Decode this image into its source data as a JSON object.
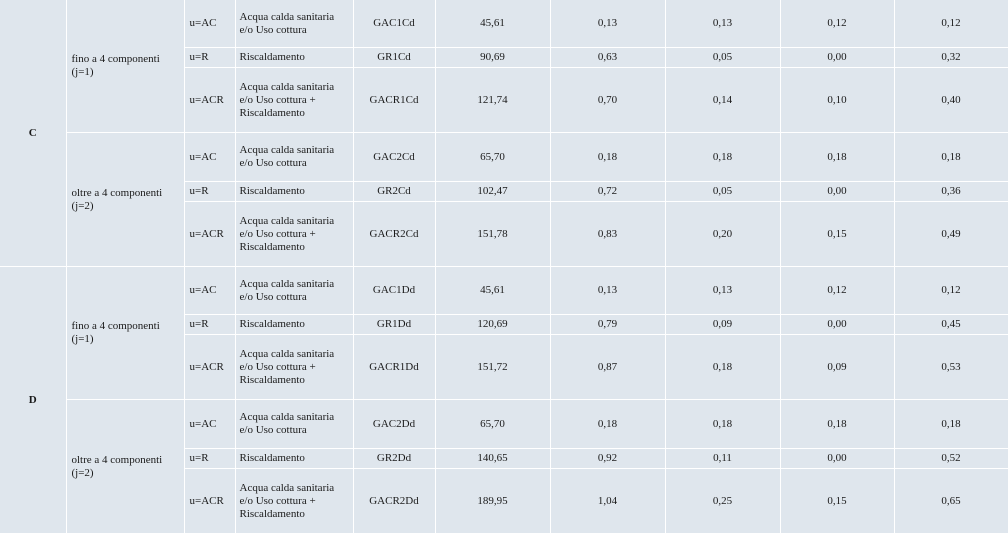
{
  "zones": [
    {
      "zone": "C",
      "groups": [
        {
          "label": "fino a 4 componenti\n(j=1)",
          "rows": [
            {
              "use": "u=AC",
              "desc": "Acqua calda sanitaria e/o Uso cottura",
              "code": "GAC1Cd",
              "v": [
                "45,61",
                "0,13",
                "0,13",
                "0,12",
                "0,12"
              ]
            },
            {
              "use": "u=R",
              "desc": "Riscaldamento",
              "code": "GR1Cd",
              "v": [
                "90,69",
                "0,63",
                "0,05",
                "0,00",
                "0,32"
              ]
            },
            {
              "use": "u=ACR",
              "desc": "Acqua calda sanitaria e/o Uso cottura + Riscaldamento",
              "code": "GACR1Cd",
              "v": [
                "121,74",
                "0,70",
                "0,14",
                "0,10",
                "0,40"
              ]
            }
          ]
        },
        {
          "label": "oltre a 4 componenti\n(j=2)",
          "rows": [
            {
              "use": "u=AC",
              "desc": "Acqua calda sanitaria e/o Uso cottura",
              "code": "GAC2Cd",
              "v": [
                "65,70",
                "0,18",
                "0,18",
                "0,18",
                "0,18"
              ]
            },
            {
              "use": "u=R",
              "desc": "Riscaldamento",
              "code": "GR2Cd",
              "v": [
                "102,47",
                "0,72",
                "0,05",
                "0,00",
                "0,36"
              ]
            },
            {
              "use": "u=ACR",
              "desc": "Acqua calda sanitaria e/o Uso cottura + Riscaldamento",
              "code": "GACR2Cd",
              "v": [
                "151,78",
                "0,83",
                "0,20",
                "0,15",
                "0,49"
              ]
            }
          ]
        }
      ]
    },
    {
      "zone": "D",
      "groups": [
        {
          "label": "fino a 4 componenti\n(j=1)",
          "rows": [
            {
              "use": "u=AC",
              "desc": "Acqua calda sanitaria e/o Uso cottura",
              "code": "GAC1Dd",
              "v": [
                "45,61",
                "0,13",
                "0,13",
                "0,12",
                "0,12"
              ]
            },
            {
              "use": "u=R",
              "desc": "Riscaldamento",
              "code": "GR1Dd",
              "v": [
                "120,69",
                "0,79",
                "0,09",
                "0,00",
                "0,45"
              ]
            },
            {
              "use": "u=ACR",
              "desc": "Acqua calda sanitaria e/o Uso cottura + Riscaldamento",
              "code": "GACR1Dd",
              "v": [
                "151,72",
                "0,87",
                "0,18",
                "0,09",
                "0,53"
              ]
            }
          ]
        },
        {
          "label": "oltre a 4 componenti\n(j=2)",
          "rows": [
            {
              "use": "u=AC",
              "desc": "Acqua calda sanitaria e/o Uso cottura",
              "code": "GAC2Dd",
              "v": [
                "65,70",
                "0,18",
                "0,18",
                "0,18",
                "0,18"
              ]
            },
            {
              "use": "u=R",
              "desc": "Riscaldamento",
              "code": "GR2Dd",
              "v": [
                "140,65",
                "0,92",
                "0,11",
                "0,00",
                "0,52"
              ]
            },
            {
              "use": "u=ACR",
              "desc": "Acqua calda sanitaria e/o Uso cottura + Riscaldamento",
              "code": "GACR2Dd",
              "v": [
                "189,95",
                "1,04",
                "0,25",
                "0,15",
                "0,65"
              ]
            }
          ]
        }
      ]
    }
  ]
}
